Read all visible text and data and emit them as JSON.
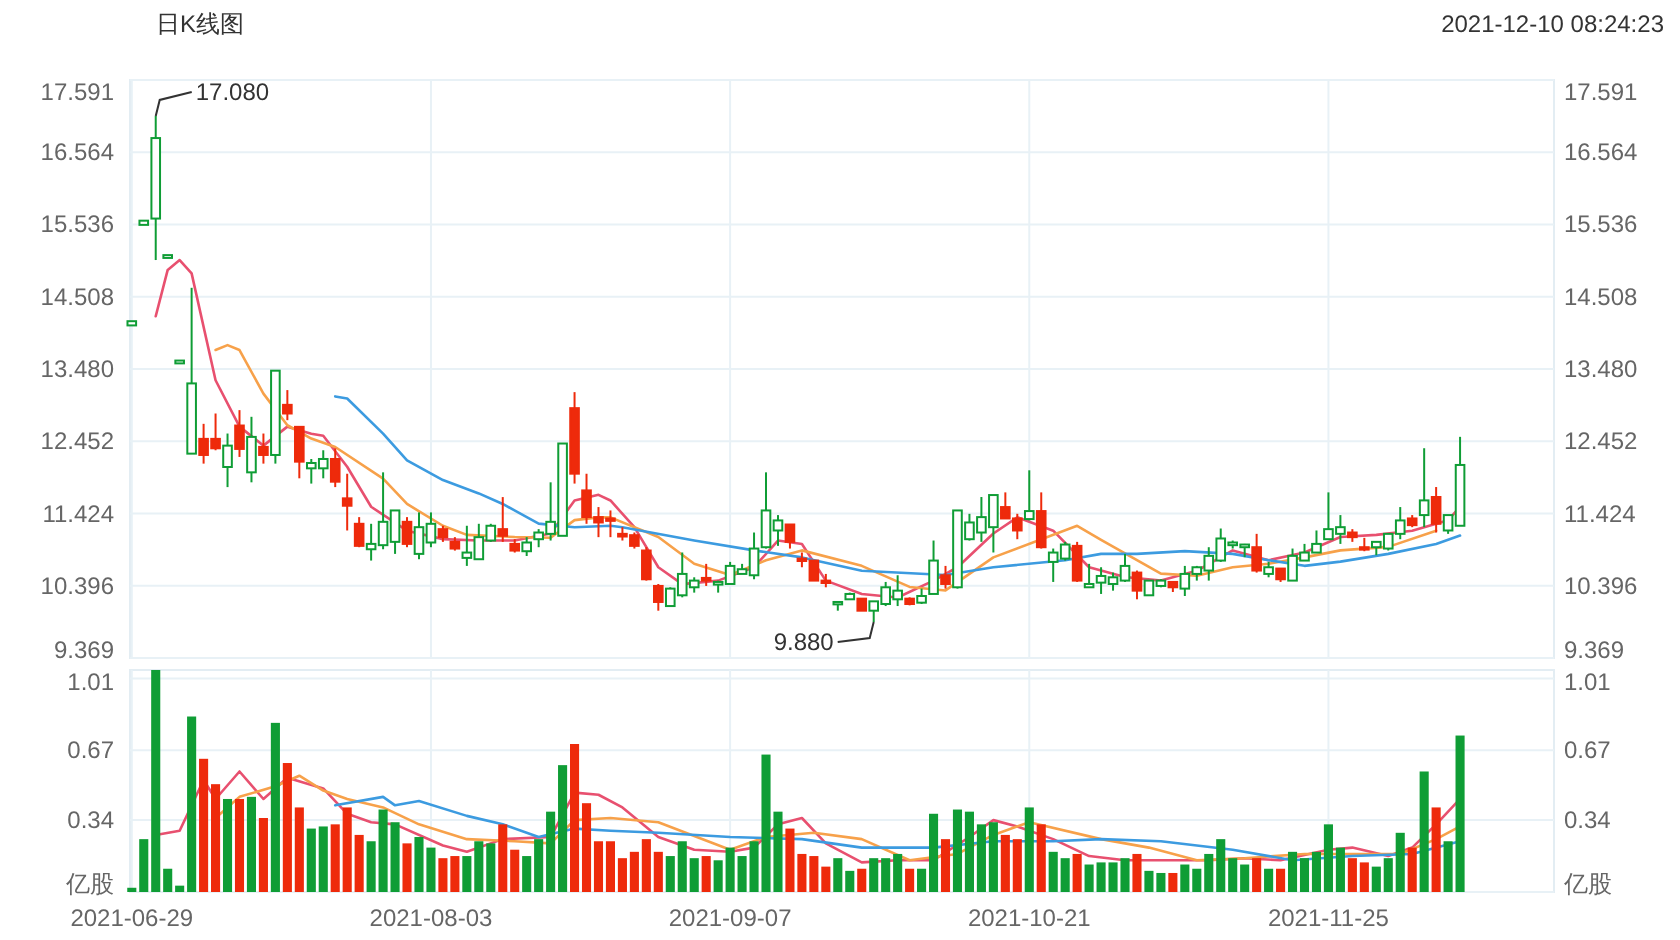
{
  "chart_data": [
    {
      "type": "candlestick",
      "title": "日K线图",
      "annotations": [
        "2021-12-10 08:24:23",
        "17.080",
        "9.880"
      ],
      "categories": [
        "2021-06-29",
        null,
        null,
        null,
        null,
        null,
        null,
        null,
        null,
        null,
        null,
        null,
        null,
        null,
        null,
        null,
        null,
        null,
        null,
        null,
        null,
        null,
        null,
        null,
        null,
        "2021-08-03",
        null,
        null,
        null,
        null,
        null,
        null,
        null,
        null,
        null,
        null,
        null,
        null,
        null,
        null,
        null,
        null,
        null,
        null,
        null,
        null,
        null,
        null,
        null,
        null,
        "2021-09-07",
        null,
        null,
        null,
        null,
        null,
        null,
        null,
        null,
        null,
        null,
        null,
        null,
        null,
        null,
        null,
        null,
        null,
        null,
        null,
        null,
        null,
        null,
        null,
        null,
        "2021-10-21",
        null,
        null,
        null,
        null,
        null,
        null,
        null,
        null,
        null,
        null,
        null,
        null,
        null,
        null,
        null,
        null,
        null,
        null,
        null,
        null,
        null,
        null,
        null,
        null,
        "2021-11-25",
        null,
        null,
        null,
        null,
        null,
        null,
        null,
        null,
        null,
        null,
        null
      ],
      "ohlc": [
        [
          14.1,
          14.16,
          14.1,
          14.16
        ],
        [
          15.53,
          15.59,
          15.53,
          15.59
        ],
        [
          15.62,
          17.08,
          15.03,
          16.765
        ],
        [
          15.06,
          15.1,
          15.06,
          15.1
        ],
        [
          13.56,
          13.6,
          13.56,
          13.6
        ],
        [
          12.276,
          14.635,
          12.276,
          13.275
        ],
        [
          12.486,
          12.7,
          12.134,
          12.257
        ],
        [
          12.486,
          12.847,
          12.324,
          12.352
        ],
        [
          12.086,
          12.562,
          11.8,
          12.39
        ],
        [
          12.676,
          12.895,
          12.229,
          12.343
        ],
        [
          12.01,
          12.8,
          11.868,
          12.514
        ],
        [
          12.372,
          12.562,
          12.134,
          12.257
        ],
        [
          12.257,
          13.456,
          12.134,
          13.456
        ],
        [
          12.97,
          13.18,
          12.752,
          12.847
        ],
        [
          12.657,
          12.657,
          11.925,
          12.162
        ],
        [
          12.067,
          12.2,
          11.85,
          12.143
        ],
        [
          12.067,
          12.324,
          11.925,
          12.2
        ],
        [
          12.2,
          12.352,
          11.8,
          11.877
        ],
        [
          11.64,
          11.99,
          11.183,
          11.535
        ],
        [
          11.278,
          11.373,
          10.945,
          10.964
        ],
        [
          10.916,
          11.278,
          10.755,
          10.992
        ],
        [
          10.974,
          12.01,
          10.916,
          11.306
        ],
        [
          11.021,
          11.468,
          10.85,
          11.468
        ],
        [
          11.306,
          11.373,
          10.945,
          10.992
        ],
        [
          10.85,
          11.44,
          10.774,
          11.23
        ],
        [
          11.012,
          11.44,
          10.945,
          11.278
        ],
        [
          11.202,
          11.25,
          11.021,
          11.088
        ],
        [
          11.021,
          11.088,
          10.897,
          10.926
        ],
        [
          10.793,
          11.25,
          10.679,
          10.869
        ],
        [
          10.774,
          11.278,
          10.774,
          11.088
        ],
        [
          11.04,
          11.278,
          11.021,
          11.25
        ],
        [
          11.202,
          11.658,
          11.021,
          11.107
        ],
        [
          10.992,
          11.059,
          10.869,
          10.897
        ],
        [
          10.888,
          11.088,
          10.82,
          11.012
        ],
        [
          11.059,
          11.202,
          10.945,
          11.154
        ],
        [
          11.135,
          11.868,
          11.04,
          11.306
        ],
        [
          11.107,
          12.42,
          11.107,
          12.42
        ],
        [
          12.923,
          13.151,
          11.85,
          11.991
        ],
        [
          11.753,
          11.99,
          11.278,
          11.373
        ],
        [
          11.373,
          11.516,
          11.088,
          11.297
        ],
        [
          11.354,
          11.468,
          11.088,
          11.326
        ],
        [
          11.135,
          11.23,
          11.04,
          11.097
        ],
        [
          11.116,
          11.154,
          10.926,
          10.964
        ],
        [
          10.898,
          10.945,
          10.47,
          10.489
        ],
        [
          10.394,
          10.422,
          10.042,
          10.166
        ],
        [
          10.108,
          10.375,
          10.108,
          10.356
        ],
        [
          10.261,
          10.87,
          10.232,
          10.565
        ],
        [
          10.375,
          10.517,
          10.299,
          10.47
        ],
        [
          10.508,
          10.708,
          10.394,
          10.47
        ],
        [
          10.413,
          10.47,
          10.299,
          10.451
        ],
        [
          10.422,
          10.736,
          10.422,
          10.679
        ],
        [
          10.565,
          10.708,
          10.565,
          10.632
        ],
        [
          10.546,
          11.154,
          10.489,
          10.926
        ],
        [
          10.945,
          12.01,
          10.926,
          11.468
        ],
        [
          11.183,
          11.402,
          10.964,
          11.326
        ],
        [
          11.268,
          11.268,
          10.926,
          11.021
        ],
        [
          10.783,
          10.87,
          10.66,
          10.764
        ],
        [
          10.755,
          10.755,
          10.47,
          10.47
        ],
        [
          10.47,
          10.565,
          10.375,
          10.451
        ],
        [
          10.156,
          10.166,
          10.042,
          10.166
        ],
        [
          10.204,
          10.299,
          10.204,
          10.28
        ],
        [
          10.213,
          10.213,
          10.042,
          10.042
        ],
        [
          10.042,
          10.175,
          9.88,
          10.175
        ],
        [
          10.137,
          10.451,
          10.108,
          10.375
        ],
        [
          10.204,
          10.546,
          10.108,
          10.327
        ],
        [
          10.213,
          10.232,
          10.118,
          10.137
        ],
        [
          10.156,
          10.356,
          10.137,
          10.251
        ],
        [
          10.28,
          11.04,
          10.28,
          10.755
        ],
        [
          10.546,
          10.679,
          10.356,
          10.422
        ],
        [
          10.375,
          11.468,
          10.356,
          11.468
        ],
        [
          11.059,
          11.42,
          11.04,
          11.297
        ],
        [
          11.154,
          11.659,
          11.021,
          11.373
        ],
        [
          11.23,
          11.687,
          10.87,
          11.687
        ],
        [
          11.516,
          11.725,
          11.354,
          11.354
        ],
        [
          11.354,
          11.42,
          11.059,
          11.183
        ],
        [
          11.345,
          12.039,
          11.326,
          11.459
        ],
        [
          11.459,
          11.725,
          10.926,
          10.945
        ],
        [
          10.736,
          10.926,
          10.451,
          10.869
        ],
        [
          10.783,
          11.021,
          10.755,
          10.983
        ],
        [
          10.964,
          11.021,
          10.451,
          10.47
        ],
        [
          10.375,
          10.708,
          10.375,
          10.422
        ],
        [
          10.441,
          10.66,
          10.28,
          10.536
        ],
        [
          10.422,
          10.584,
          10.327,
          10.517
        ],
        [
          10.47,
          10.85,
          10.451,
          10.679
        ],
        [
          10.584,
          10.613,
          10.204,
          10.327
        ],
        [
          10.261,
          10.47,
          10.261,
          10.47
        ],
        [
          10.394,
          10.489,
          10.375,
          10.47
        ],
        [
          10.451,
          10.451,
          10.308,
          10.375
        ],
        [
          10.356,
          10.679,
          10.251,
          10.565
        ],
        [
          10.565,
          10.679,
          10.47,
          10.66
        ],
        [
          10.613,
          10.945,
          10.47,
          10.822
        ],
        [
          10.755,
          11.211,
          10.736,
          11.069
        ],
        [
          10.974,
          11.04,
          10.926,
          11.012
        ],
        [
          10.945,
          10.992,
          10.803,
          10.983
        ],
        [
          10.945,
          11.135,
          10.584,
          10.613
        ],
        [
          10.565,
          10.736,
          10.517,
          10.66
        ],
        [
          10.641,
          10.641,
          10.451,
          10.489
        ],
        [
          10.47,
          10.926,
          10.47,
          10.822
        ],
        [
          10.755,
          10.992,
          10.755,
          10.869
        ],
        [
          10.869,
          11.183,
          10.869,
          10.992
        ],
        [
          11.059,
          11.725,
          11.059,
          11.202
        ],
        [
          11.135,
          11.402,
          10.992,
          11.23
        ],
        [
          11.154,
          11.202,
          11.021,
          11.088
        ],
        [
          10.945,
          11.078,
          10.888,
          10.936
        ],
        [
          10.945,
          11.021,
          10.831,
          11.021
        ],
        [
          10.926,
          11.135,
          10.898,
          11.135
        ],
        [
          11.135,
          11.516,
          11.059,
          11.326
        ],
        [
          11.354,
          11.402,
          11.23,
          11.259
        ],
        [
          11.402,
          12.353,
          11.23,
          11.611
        ],
        [
          11.659,
          11.801,
          11.154,
          11.278
        ],
        [
          11.183,
          11.402,
          11.135,
          11.402
        ],
        [
          11.25,
          12.515,
          11.25,
          12.115
        ]
      ],
      "colors": [
        "#0f9d35",
        "#0f9d35",
        "#0f9d35",
        "#0f9d35",
        "#0f9d35",
        "#0f9d35",
        "#ee2a0b",
        "#ee2a0b",
        "#0f9d35",
        "#ee2a0b",
        "#0f9d35",
        "#ee2a0b",
        "#0f9d35",
        "#ee2a0b",
        "#ee2a0b",
        "#0f9d35",
        "#0f9d35",
        "#ee2a0b",
        "#ee2a0b",
        "#ee2a0b",
        "#0f9d35",
        "#0f9d35",
        "#0f9d35",
        "#ee2a0b",
        "#0f9d35",
        "#0f9d35",
        "#ee2a0b",
        "#ee2a0b",
        "#0f9d35",
        "#0f9d35",
        "#0f9d35",
        "#ee2a0b",
        "#ee2a0b",
        "#0f9d35",
        "#0f9d35",
        "#0f9d35",
        "#0f9d35",
        "#ee2a0b",
        "#ee2a0b",
        "#ee2a0b",
        "#ee2a0b",
        "#ee2a0b",
        "#ee2a0b",
        "#ee2a0b",
        "#ee2a0b",
        "#0f9d35",
        "#0f9d35",
        "#0f9d35",
        "#ee2a0b",
        "#0f9d35",
        "#0f9d35",
        "#0f9d35",
        "#0f9d35",
        "#0f9d35",
        "#0f9d35",
        "#ee2a0b",
        "#ee2a0b",
        "#ee2a0b",
        "#ee2a0b",
        "#0f9d35",
        "#0f9d35",
        "#ee2a0b",
        "#0f9d35",
        "#0f9d35",
        "#0f9d35",
        "#ee2a0b",
        "#0f9d35",
        "#0f9d35",
        "#ee2a0b",
        "#0f9d35",
        "#0f9d35",
        "#0f9d35",
        "#0f9d35",
        "#ee2a0b",
        "#ee2a0b",
        "#0f9d35",
        "#ee2a0b",
        "#0f9d35",
        "#0f9d35",
        "#ee2a0b",
        "#0f9d35",
        "#0f9d35",
        "#0f9d35",
        "#0f9d35",
        "#ee2a0b",
        "#0f9d35",
        "#0f9d35",
        "#ee2a0b",
        "#0f9d35",
        "#0f9d35",
        "#0f9d35",
        "#0f9d35",
        "#0f9d35",
        "#0f9d35",
        "#ee2a0b",
        "#0f9d35",
        "#ee2a0b",
        "#0f9d35",
        "#0f9d35",
        "#0f9d35",
        "#0f9d35",
        "#0f9d35",
        "#ee2a0b",
        "#ee2a0b",
        "#0f9d35",
        "#0f9d35",
        "#0f9d35",
        "#ee2a0b",
        "#0f9d35",
        "#ee2a0b",
        "#0f9d35",
        "#0f9d35"
      ],
      "series": [
        {
          "type": "line",
          "color": "#e8506f",
          "values": [
            null,
            null,
            14.23,
            14.89,
            15.03,
            14.84,
            null,
            13.32,
            null,
            12.66,
            null,
            12.39,
            null,
            12.66,
            null,
            12.56,
            12.53,
            null,
            12.09,
            null,
            11.52,
            null,
            null,
            11.18,
            null,
            null,
            11.06,
            null,
            null,
            11.04,
            null,
            null,
            11.04,
            null,
            null,
            11.14,
            null,
            11.61,
            null,
            11.69,
            11.61,
            null,
            11.23,
            null,
            10.66,
            null,
            10.42,
            null,
            null,
            10.47,
            null,
            null,
            10.66,
            null,
            11.04,
            null,
            10.99,
            null,
            10.47,
            null,
            null,
            10.28,
            null,
            null,
            10.23,
            null,
            null,
            10.47,
            null,
            10.66,
            null,
            null,
            11.14,
            null,
            11.37,
            null,
            null,
            11.18,
            null,
            null,
            10.66,
            null,
            null,
            10.52,
            null,
            null,
            10.47,
            null,
            null,
            10.61,
            null,
            null,
            10.9,
            null,
            null,
            10.76,
            null,
            null,
            10.87,
            null,
            null,
            11.09,
            null,
            null,
            11.12,
            null,
            null,
            11.18,
            null,
            null,
            11.33,
            11.52
          ]
        },
        {
          "type": "line",
          "color": "#f7a14a",
          "values": [
            null,
            null,
            null,
            null,
            null,
            null,
            null,
            13.75,
            13.82,
            13.75,
            null,
            13.13,
            null,
            12.68,
            null,
            12.49,
            null,
            12.37,
            null,
            null,
            null,
            11.92,
            null,
            11.56,
            null,
            null,
            11.25,
            null,
            11.12,
            null,
            null,
            null,
            11.09,
            null,
            null,
            11.08,
            null,
            11.33,
            null,
            11.37,
            11.37,
            null,
            null,
            null,
            11.09,
            null,
            null,
            10.71,
            null,
            null,
            10.55,
            null,
            null,
            10.76,
            null,
            null,
            10.9,
            null,
            null,
            null,
            null,
            10.68,
            null,
            null,
            null,
            10.38,
            null,
            null,
            10.33,
            null,
            null,
            null,
            10.8,
            null,
            null,
            null,
            null,
            null,
            null,
            11.25,
            null,
            11.05,
            null,
            null,
            null,
            null,
            10.57,
            null,
            null,
            10.54,
            null,
            null,
            10.66,
            null,
            null,
            10.71,
            null,
            null,
            10.8,
            null,
            null,
            10.9,
            null,
            null,
            null,
            10.95,
            null,
            null,
            null,
            11.18,
            null,
            null
          ]
        },
        {
          "type": "line",
          "color": "#3c9be0",
          "values": [
            null,
            null,
            null,
            null,
            null,
            null,
            null,
            null,
            null,
            null,
            null,
            null,
            null,
            null,
            null,
            null,
            null,
            13.09,
            13.06,
            null,
            null,
            12.56,
            null,
            12.18,
            null,
            null,
            11.9,
            null,
            null,
            11.71,
            null,
            11.56,
            null,
            null,
            11.28,
            null,
            null,
            11.23,
            null,
            null,
            11.25,
            11.23,
            null,
            null,
            null,
            null,
            null,
            11.04,
            null,
            null,
            null,
            null,
            10.9,
            null,
            null,
            null,
            10.8,
            null,
            null,
            null,
            null,
            10.61,
            null,
            null,
            null,
            null,
            null,
            null,
            10.55,
            null,
            null,
            null,
            10.66,
            null,
            null,
            null,
            null,
            null,
            10.76,
            null,
            null,
            10.85,
            null,
            null,
            10.85,
            null,
            null,
            null,
            10.89,
            null,
            null,
            null,
            10.85,
            null,
            null,
            10.76,
            null,
            null,
            10.68,
            null,
            null,
            10.74,
            null,
            null,
            null,
            10.85,
            null,
            null,
            null,
            10.99,
            null,
            11.11
          ]
        }
      ],
      "ylim": [
        9.369,
        17.591
      ],
      "yticks": [
        9.369,
        10.396,
        11.424,
        12.452,
        {
          "value": 13.48,
          "label": "13.480"
        },
        14.508,
        15.536,
        16.564,
        17.591
      ],
      "y2lim": [
        9.369,
        17.591
      ],
      "y2ticks": [
        9.369,
        10.396,
        11.424,
        12.452,
        {
          "value": 13.48,
          "label": "13.480"
        },
        14.508,
        15.536,
        16.564,
        17.591
      ],
      "grid": true,
      "tick_labels": "y"
    },
    {
      "type": "bar",
      "categories": [
        "2021-06-29",
        null,
        null,
        null,
        null,
        null,
        null,
        null,
        null,
        null,
        null,
        null,
        null,
        null,
        null,
        null,
        null,
        null,
        null,
        null,
        null,
        null,
        null,
        null,
        null,
        "2021-08-03",
        null,
        null,
        null,
        null,
        null,
        null,
        null,
        null,
        null,
        null,
        null,
        null,
        null,
        null,
        null,
        null,
        null,
        null,
        null,
        null,
        null,
        null,
        null,
        null,
        "2021-09-07",
        null,
        null,
        null,
        null,
        null,
        null,
        null,
        null,
        null,
        null,
        null,
        null,
        null,
        null,
        null,
        null,
        null,
        null,
        null,
        null,
        null,
        null,
        null,
        null,
        "2021-10-21",
        null,
        null,
        null,
        null,
        null,
        null,
        null,
        null,
        null,
        null,
        null,
        null,
        null,
        null,
        null,
        null,
        null,
        null,
        null,
        null,
        null,
        null,
        null,
        null,
        "2021-11-25",
        null,
        null,
        null,
        null,
        null,
        null,
        null,
        null,
        null,
        null,
        null
      ],
      "values": [
        0.02,
        0.25,
        1.05,
        0.11,
        0.03,
        0.83,
        0.63,
        0.51,
        0.44,
        0.44,
        0.45,
        0.35,
        0.8,
        0.61,
        0.4,
        0.3,
        0.31,
        0.32,
        0.4,
        0.27,
        0.24,
        0.39,
        0.33,
        0.23,
        0.26,
        0.21,
        0.16,
        0.17,
        0.17,
        0.24,
        0.23,
        0.32,
        0.2,
        0.17,
        0.25,
        0.38,
        0.6,
        0.7,
        0.42,
        0.24,
        0.24,
        0.16,
        0.19,
        0.25,
        0.19,
        0.17,
        0.24,
        0.16,
        0.17,
        0.15,
        0.21,
        0.17,
        0.24,
        0.65,
        0.38,
        0.3,
        0.18,
        0.17,
        0.12,
        0.16,
        0.1,
        0.11,
        0.16,
        0.16,
        0.18,
        0.11,
        0.11,
        0.37,
        0.25,
        0.39,
        0.38,
        0.32,
        0.33,
        0.27,
        0.25,
        0.4,
        0.32,
        0.19,
        0.16,
        0.18,
        0.13,
        0.14,
        0.14,
        0.16,
        0.18,
        0.1,
        0.09,
        0.09,
        0.13,
        0.11,
        0.18,
        0.25,
        0.16,
        0.13,
        0.16,
        0.11,
        0.11,
        0.19,
        0.16,
        0.19,
        0.32,
        0.21,
        0.16,
        0.14,
        0.12,
        0.16,
        0.28,
        0.21,
        0.57,
        0.4,
        0.24,
        0.74
      ],
      "colors": [
        "#0f9d35",
        "#0f9d35",
        "#0f9d35",
        "#0f9d35",
        "#0f9d35",
        "#0f9d35",
        "#ee2a0b",
        "#ee2a0b",
        "#0f9d35",
        "#ee2a0b",
        "#0f9d35",
        "#ee2a0b",
        "#0f9d35",
        "#ee2a0b",
        "#ee2a0b",
        "#0f9d35",
        "#0f9d35",
        "#ee2a0b",
        "#ee2a0b",
        "#ee2a0b",
        "#0f9d35",
        "#0f9d35",
        "#0f9d35",
        "#ee2a0b",
        "#0f9d35",
        "#0f9d35",
        "#ee2a0b",
        "#ee2a0b",
        "#0f9d35",
        "#0f9d35",
        "#0f9d35",
        "#ee2a0b",
        "#ee2a0b",
        "#0f9d35",
        "#0f9d35",
        "#0f9d35",
        "#0f9d35",
        "#ee2a0b",
        "#ee2a0b",
        "#ee2a0b",
        "#ee2a0b",
        "#ee2a0b",
        "#ee2a0b",
        "#ee2a0b",
        "#ee2a0b",
        "#0f9d35",
        "#0f9d35",
        "#0f9d35",
        "#ee2a0b",
        "#0f9d35",
        "#0f9d35",
        "#0f9d35",
        "#0f9d35",
        "#0f9d35",
        "#0f9d35",
        "#ee2a0b",
        "#ee2a0b",
        "#ee2a0b",
        "#ee2a0b",
        "#0f9d35",
        "#0f9d35",
        "#ee2a0b",
        "#0f9d35",
        "#0f9d35",
        "#0f9d35",
        "#ee2a0b",
        "#0f9d35",
        "#0f9d35",
        "#ee2a0b",
        "#0f9d35",
        "#0f9d35",
        "#0f9d35",
        "#0f9d35",
        "#ee2a0b",
        "#ee2a0b",
        "#0f9d35",
        "#ee2a0b",
        "#0f9d35",
        "#0f9d35",
        "#ee2a0b",
        "#0f9d35",
        "#0f9d35",
        "#0f9d35",
        "#0f9d35",
        "#ee2a0b",
        "#0f9d35",
        "#0f9d35",
        "#ee2a0b",
        "#0f9d35",
        "#0f9d35",
        "#0f9d35",
        "#0f9d35",
        "#0f9d35",
        "#0f9d35",
        "#ee2a0b",
        "#0f9d35",
        "#ee2a0b",
        "#0f9d35",
        "#0f9d35",
        "#0f9d35",
        "#0f9d35",
        "#0f9d35",
        "#ee2a0b",
        "#ee2a0b",
        "#0f9d35",
        "#0f9d35",
        "#0f9d35",
        "#ee2a0b",
        "#0f9d35",
        "#ee2a0b",
        "#0f9d35",
        "#0f9d35"
      ],
      "series": [
        {
          "type": "line",
          "color": "#e8506f",
          "values": [
            null,
            null,
            0.27,
            null,
            0.29,
            null,
            0.53,
            0.44,
            null,
            0.57,
            null,
            0.44,
            null,
            0.54,
            null,
            null,
            0.49,
            null,
            0.37,
            null,
            0.33,
            null,
            0.32,
            null,
            null,
            null,
            0.22,
            null,
            0.19,
            null,
            null,
            0.25,
            null,
            null,
            null,
            0.26,
            null,
            0.47,
            null,
            0.46,
            null,
            0.4,
            null,
            null,
            0.26,
            null,
            null,
            0.2,
            null,
            null,
            0.19,
            null,
            0.21,
            null,
            0.32,
            null,
            0.35,
            null,
            0.23,
            null,
            null,
            0.14,
            null,
            null,
            0.15,
            null,
            null,
            0.15,
            null,
            null,
            0.26,
            null,
            0.34,
            null,
            0.31,
            null,
            null,
            0.25,
            null,
            null,
            0.17,
            null,
            null,
            0.15,
            null,
            null,
            null,
            0.15,
            null,
            null,
            0.15,
            null,
            null,
            0.16,
            null,
            null,
            0.15,
            null,
            null,
            null,
            0.2,
            null,
            0.21,
            null,
            null,
            0.17,
            null,
            0.21,
            null,
            0.32,
            null,
            0.44
          ]
        },
        {
          "type": "line",
          "color": "#f7a14a",
          "values": [
            null,
            null,
            null,
            null,
            null,
            null,
            null,
            0.35,
            null,
            0.45,
            null,
            null,
            0.5,
            null,
            0.55,
            null,
            0.48,
            null,
            0.44,
            null,
            null,
            0.4,
            null,
            null,
            0.32,
            null,
            null,
            null,
            0.25,
            null,
            null,
            null,
            0.24,
            null,
            null,
            0.23,
            null,
            0.34,
            null,
            null,
            0.35,
            null,
            null,
            null,
            0.33,
            null,
            null,
            null,
            null,
            null,
            0.2,
            null,
            null,
            0.26,
            null,
            null,
            null,
            0.28,
            null,
            null,
            null,
            0.25,
            null,
            null,
            null,
            0.15,
            null,
            null,
            null,
            0.18,
            null,
            null,
            0.27,
            null,
            null,
            0.33,
            null,
            null,
            null,
            null,
            null,
            0.25,
            null,
            null,
            null,
            0.21,
            null,
            null,
            null,
            0.15,
            null,
            null,
            null,
            0.16,
            null,
            null,
            null,
            null,
            0.18,
            null,
            null,
            null,
            0.18,
            null,
            null,
            null,
            0.18,
            null,
            null,
            0.25,
            null,
            0.31
          ]
        },
        {
          "type": "line",
          "color": "#3c9be0",
          "values": [
            null,
            null,
            null,
            null,
            null,
            null,
            null,
            null,
            null,
            null,
            null,
            null,
            null,
            null,
            null,
            null,
            null,
            0.41,
            null,
            null,
            null,
            0.45,
            0.41,
            null,
            0.43,
            null,
            null,
            null,
            0.36,
            null,
            null,
            0.32,
            null,
            null,
            0.26,
            null,
            null,
            0.3,
            null,
            null,
            0.29,
            null,
            null,
            null,
            0.28,
            null,
            null,
            null,
            null,
            null,
            0.26,
            null,
            null,
            null,
            null,
            null,
            0.25,
            null,
            null,
            null,
            null,
            0.21,
            null,
            null,
            null,
            null,
            null,
            0.21,
            null,
            null,
            null,
            null,
            0.24,
            null,
            null,
            null,
            null,
            0.24,
            null,
            null,
            null,
            0.25,
            null,
            null,
            null,
            null,
            0.24,
            null,
            null,
            null,
            null,
            null,
            0.2,
            null,
            null,
            null,
            null,
            0.15,
            null,
            null,
            null,
            null,
            0.17,
            null,
            null,
            null,
            null,
            0.18,
            null,
            null,
            null,
            0.24
          ]
        }
      ],
      "ylim": [
        0,
        1.05
      ],
      "yticks": [
        {
          "value": 0,
          "label": "亿股"
        },
        0.34,
        0.67,
        1.01
      ],
      "y2lim": [
        0,
        1.05
      ],
      "y2ticks": [
        {
          "value": 0,
          "label": "亿股"
        },
        0.34,
        0.67,
        1.01
      ],
      "grid": true
    }
  ]
}
